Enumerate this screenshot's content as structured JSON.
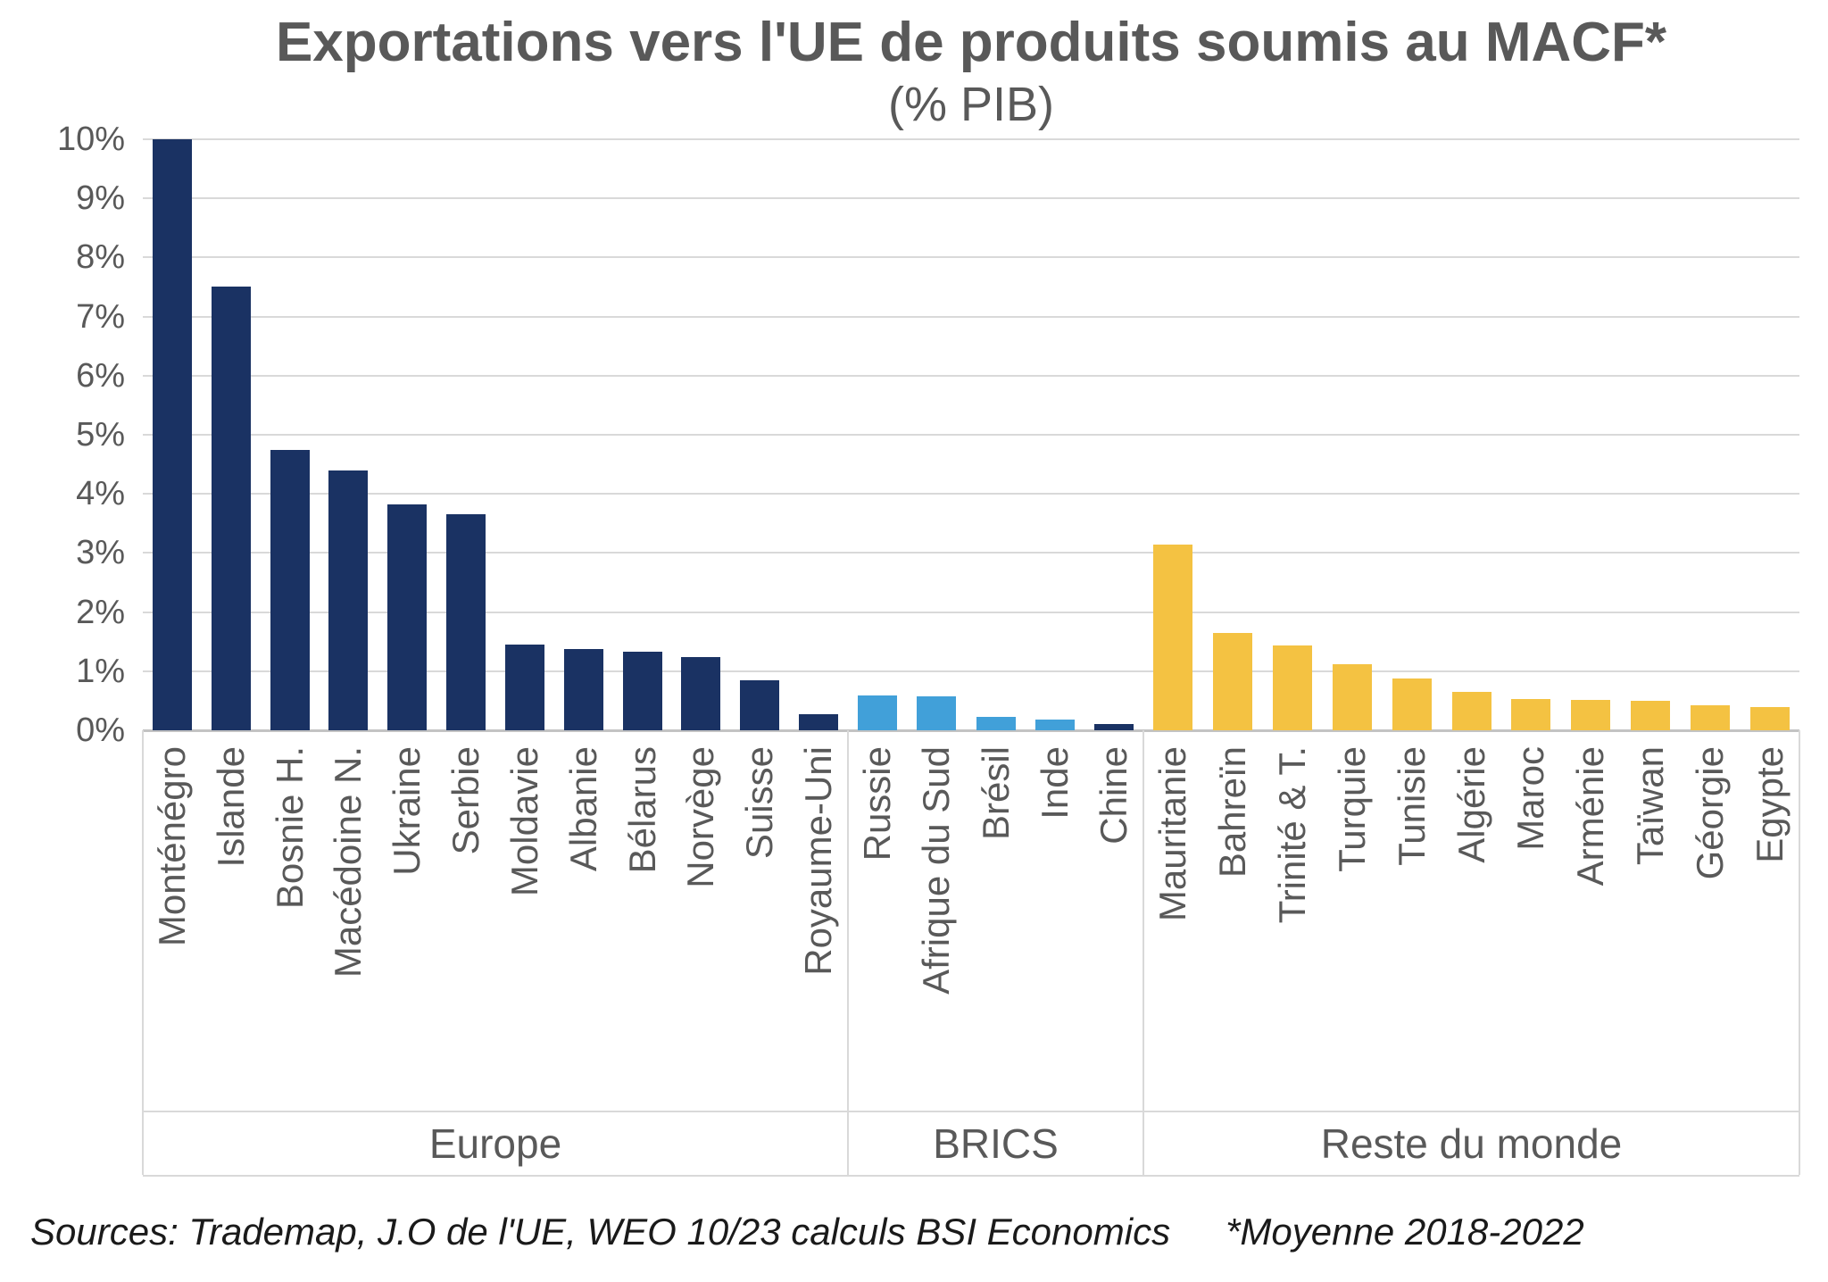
{
  "title": "Exportations vers l'UE de produits soumis au MACF*",
  "subtitle": "(% PIB)",
  "footer": {
    "sources": "Sources: Trademap, J.O de l'UE, WEO 10/23 calculs BSI Economics",
    "note": "*Moyenne 2018-2022"
  },
  "colors": {
    "europe_bar": "#1a3263",
    "brics_bar": "#41a0d9",
    "reste_bar": "#f4c242",
    "chine_bar": "#1a3263",
    "gridline": "#d9d9d9",
    "axis": "#c3c3c3",
    "text_gray": "#595959"
  },
  "y_axis": {
    "ticks": [
      "0%",
      "1%",
      "2%",
      "3%",
      "4%",
      "5%",
      "6%",
      "7%",
      "8%",
      "9%",
      "10%"
    ],
    "min": 0,
    "max": 10,
    "grid": "horizontal"
  },
  "chart_data": {
    "type": "bar",
    "title": "Exportations vers l'UE de produits soumis au MACF* (% PIB)",
    "xlabel": "",
    "ylabel": "% PIB",
    "ylim": [
      0,
      10
    ],
    "legend": "none",
    "groups": [
      {
        "label": "Europe",
        "color": "#1a3263",
        "bars": [
          {
            "name": "Monténégro",
            "value": 10.0
          },
          {
            "name": "Islande",
            "value": 7.5
          },
          {
            "name": "Bosnie H.",
            "value": 4.75
          },
          {
            "name": "Macédoine N.",
            "value": 4.4
          },
          {
            "name": "Ukraine",
            "value": 3.82
          },
          {
            "name": "Serbie",
            "value": 3.65
          },
          {
            "name": "Moldavie",
            "value": 1.45
          },
          {
            "name": "Albanie",
            "value": 1.37
          },
          {
            "name": "Bélarus",
            "value": 1.33
          },
          {
            "name": "Norvège",
            "value": 1.24
          },
          {
            "name": "Suisse",
            "value": 0.85
          },
          {
            "name": "Royaume-Uni",
            "value": 0.27
          }
        ]
      },
      {
        "label": "BRICS",
        "color": "#41a0d9",
        "bars": [
          {
            "name": "Russie",
            "value": 0.59
          },
          {
            "name": "Afrique du Sud",
            "value": 0.57
          },
          {
            "name": "Brésil",
            "value": 0.23
          },
          {
            "name": "Inde",
            "value": 0.18
          },
          {
            "name": "Chine",
            "value": 0.1,
            "color": "#1a3263"
          }
        ]
      },
      {
        "label": "Reste du monde",
        "color": "#f4c242",
        "bars": [
          {
            "name": "Mauritanie",
            "value": 3.14
          },
          {
            "name": "Bahreïn",
            "value": 1.65
          },
          {
            "name": "Trinité & T.",
            "value": 1.43
          },
          {
            "name": "Turquie",
            "value": 1.12
          },
          {
            "name": "Tunisie",
            "value": 0.87
          },
          {
            "name": "Algérie",
            "value": 0.65
          },
          {
            "name": "Maroc",
            "value": 0.53
          },
          {
            "name": "Arménie",
            "value": 0.51
          },
          {
            "name": "Taïwan",
            "value": 0.5
          },
          {
            "name": "Géorgie",
            "value": 0.43
          },
          {
            "name": "Egypte",
            "value": 0.39
          }
        ]
      }
    ]
  }
}
